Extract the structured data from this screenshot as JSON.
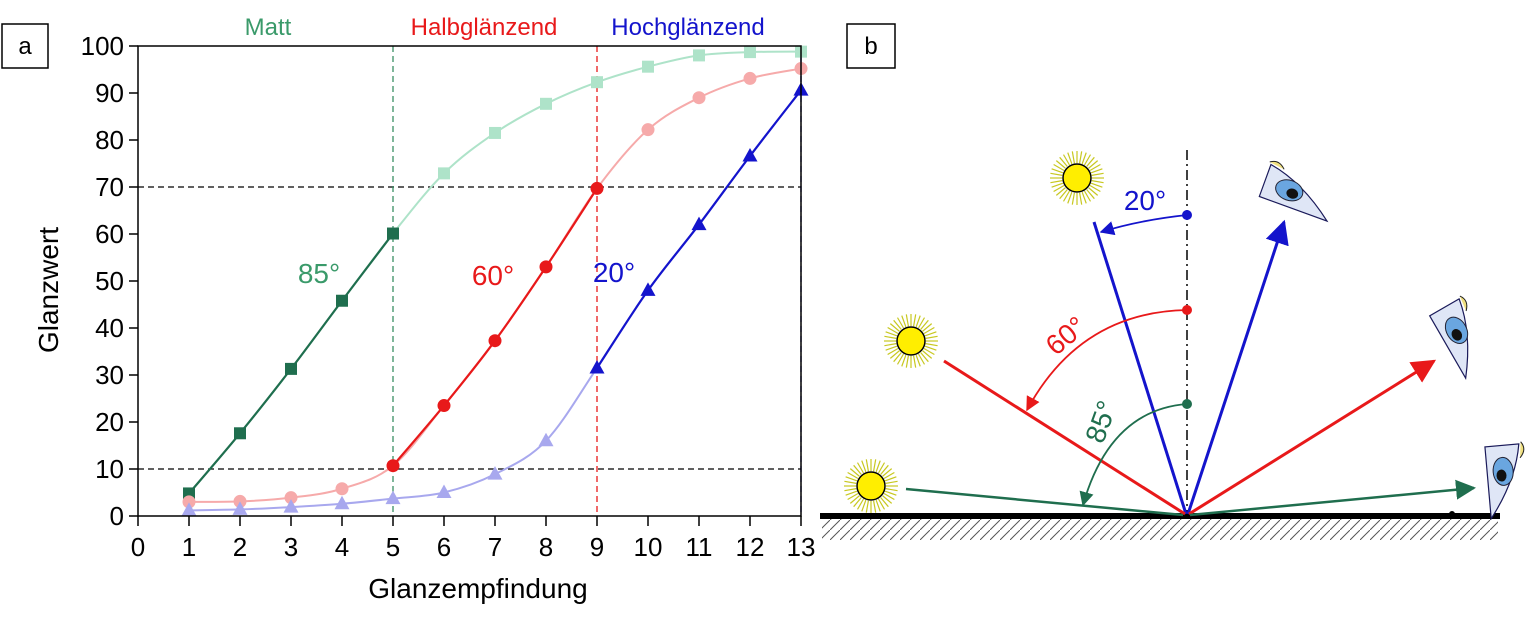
{
  "panels": {
    "a": "a",
    "b": "b"
  },
  "chart_data": {
    "type": "line",
    "xlabel": "Glanzempfindung",
    "ylabel": "Glanzwert",
    "xlim": [
      0,
      13
    ],
    "ylim": [
      0,
      100
    ],
    "x_ticks": [
      0,
      1,
      2,
      3,
      4,
      5,
      6,
      7,
      8,
      9,
      10,
      11,
      12,
      13
    ],
    "y_ticks": [
      0,
      10,
      20,
      30,
      40,
      50,
      60,
      70,
      80,
      90,
      100
    ],
    "grid": false,
    "legend": "none",
    "reference_lines": {
      "horizontal": [
        10,
        70
      ],
      "vertical": [
        {
          "x": 5,
          "color": "#3a8f63"
        },
        {
          "x": 9,
          "color": "#e8191a"
        },
        {
          "x": 13,
          "color": "#1f1fd2"
        }
      ]
    },
    "region_labels": [
      {
        "text": "Matt",
        "color": "#3a9a6a"
      },
      {
        "text": "Halbglänzend",
        "color": "#e8191a"
      },
      {
        "text": "Hochglänzend",
        "color": "#1414cc"
      }
    ],
    "series": [
      {
        "name": "85°",
        "marker": "square",
        "color": "#1f6e4e",
        "color_light": "#aee3c9",
        "x": [
          1,
          2,
          3,
          4,
          5,
          6,
          7,
          8,
          9,
          10,
          11,
          12,
          13
        ],
        "y": [
          4.8,
          17.6,
          31.3,
          45.8,
          60.1,
          72.9,
          81.5,
          87.7,
          92.3,
          95.6,
          98.0,
          98.7,
          98.8
        ],
        "emphasized": [
          1,
          2,
          3,
          4,
          5
        ]
      },
      {
        "name": "60°",
        "marker": "circle",
        "color": "#e8191a",
        "color_light": "#f6aaaa",
        "x": [
          1,
          2,
          3,
          4,
          5,
          6,
          7,
          8,
          9,
          10,
          11,
          12,
          13
        ],
        "y": [
          3.0,
          3.1,
          3.9,
          5.8,
          10.7,
          23.5,
          37.3,
          53.0,
          69.7,
          82.2,
          89.0,
          93.1,
          95.2
        ],
        "emphasized": [
          5,
          6,
          7,
          8,
          9
        ]
      },
      {
        "name": "20°",
        "marker": "triangle",
        "color": "#1414cc",
        "color_light": "#a8a8ee",
        "x": [
          1,
          2,
          3,
          4,
          5,
          6,
          7,
          8,
          9,
          10,
          11,
          12,
          13
        ],
        "y": [
          1.2,
          1.4,
          1.9,
          2.6,
          3.7,
          5.0,
          8.9,
          16.0,
          31.5,
          48.0,
          62.0,
          76.6,
          90.6
        ],
        "emphasized": [
          9,
          10,
          11,
          12,
          13
        ]
      }
    ]
  },
  "diagram": {
    "angles": [
      {
        "text": "20°",
        "color": "#1414cc"
      },
      {
        "text": "60°",
        "color": "#e8191a"
      },
      {
        "text": "85°",
        "color": "#1f6e4e"
      }
    ]
  }
}
